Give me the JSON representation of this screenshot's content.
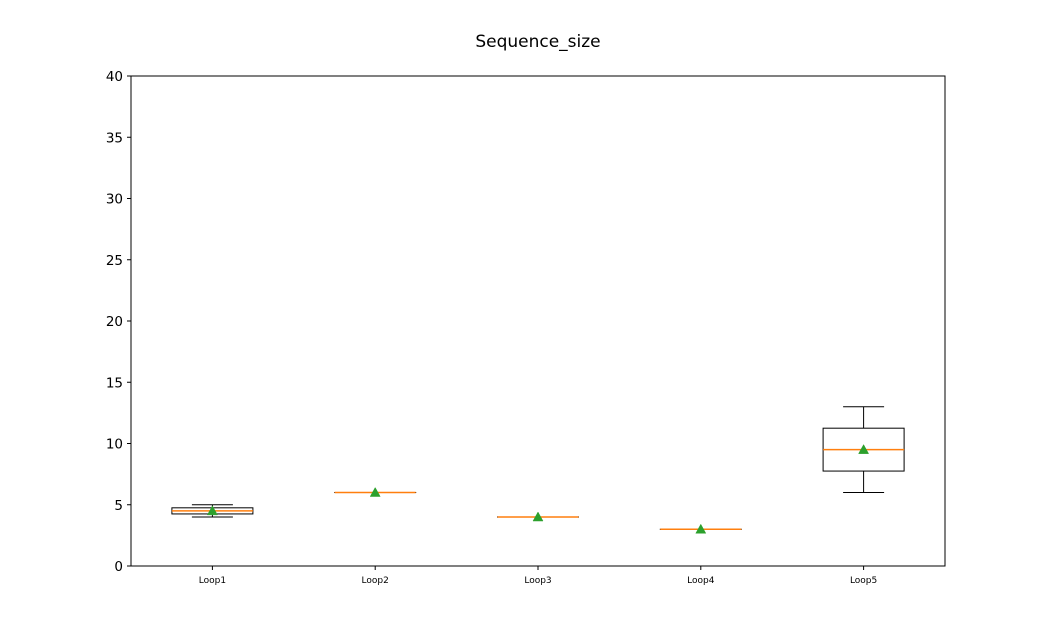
{
  "chart_data": {
    "type": "box",
    "title": "Sequence_size",
    "xlabel": "",
    "ylabel": "",
    "ylim": [
      0,
      40
    ],
    "yticks": [
      0,
      5,
      10,
      15,
      20,
      25,
      30,
      35,
      40
    ],
    "grid": false,
    "categories": [
      "Loop1",
      "Loop2",
      "Loop3",
      "Loop4",
      "Loop5"
    ],
    "boxes": [
      {
        "category": "Loop1",
        "whisker_low": 4.0,
        "q1": 4.25,
        "median": 4.5,
        "q3": 4.75,
        "whisker_high": 5.0,
        "mean": 4.5
      },
      {
        "category": "Loop2",
        "whisker_low": 6.0,
        "q1": 6.0,
        "median": 6.0,
        "q3": 6.0,
        "whisker_high": 6.0,
        "mean": 6.0
      },
      {
        "category": "Loop3",
        "whisker_low": 4.0,
        "q1": 4.0,
        "median": 4.0,
        "q3": 4.0,
        "whisker_high": 4.0,
        "mean": 4.0
      },
      {
        "category": "Loop4",
        "whisker_low": 3.0,
        "q1": 3.0,
        "median": 3.0,
        "q3": 3.0,
        "whisker_high": 3.0,
        "mean": 3.0
      },
      {
        "category": "Loop5",
        "whisker_low": 6.0,
        "q1": 7.75,
        "median": 9.5,
        "q3": 11.25,
        "whisker_high": 13.0,
        "mean": 9.5
      }
    ],
    "colors": {
      "box": "#000000",
      "median": "#ff7f0e",
      "mean_marker": "#2ca02c"
    }
  }
}
